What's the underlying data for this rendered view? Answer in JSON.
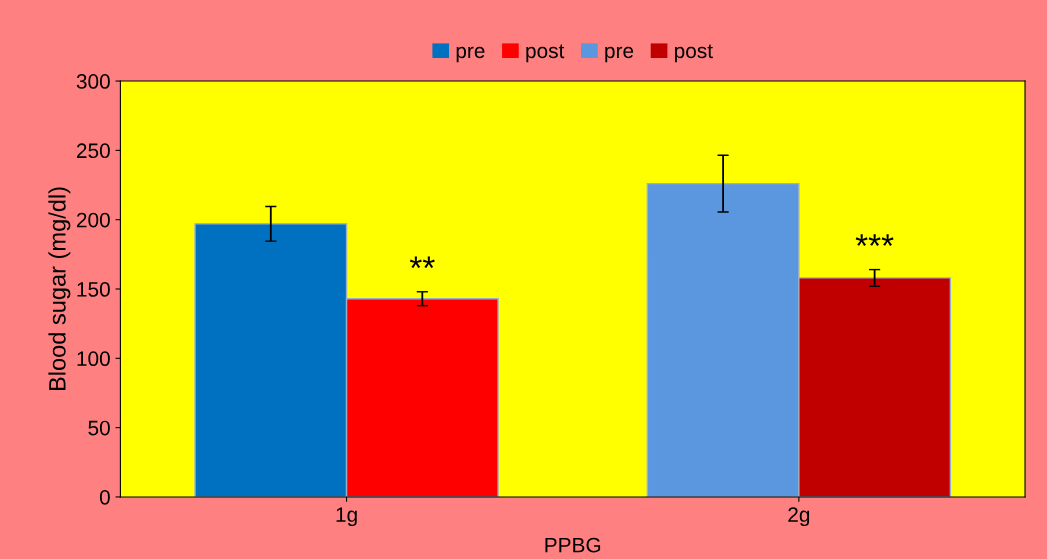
{
  "chart_data": {
    "type": "bar",
    "xlabel": "PPBG",
    "ylabel": "Blood sugar (mg/dl)",
    "categories": [
      "1g",
      "2g"
    ],
    "series": [
      {
        "name": "pre",
        "color": "#0070c0",
        "values": [
          197,
          null
        ],
        "errors": [
          12.5,
          null
        ]
      },
      {
        "name": "post",
        "color": "#ff0000",
        "values": [
          143,
          null
        ],
        "errors": [
          5,
          null
        ]
      },
      {
        "name": "pre",
        "color": "#5b97de",
        "values": [
          null,
          226
        ],
        "errors": [
          null,
          20.5
        ]
      },
      {
        "name": "post",
        "color": "#c00000",
        "values": [
          null,
          158
        ],
        "errors": [
          null,
          6
        ]
      }
    ],
    "ylim": [
      0,
      300
    ],
    "yticks": [
      0,
      50,
      100,
      150,
      200,
      250,
      300
    ],
    "grid": false,
    "legend": "top",
    "annotations": [
      {
        "text": "**",
        "x": "1g",
        "y": 152
      },
      {
        "text": "***",
        "x": "2g",
        "y": 168
      }
    ]
  }
}
